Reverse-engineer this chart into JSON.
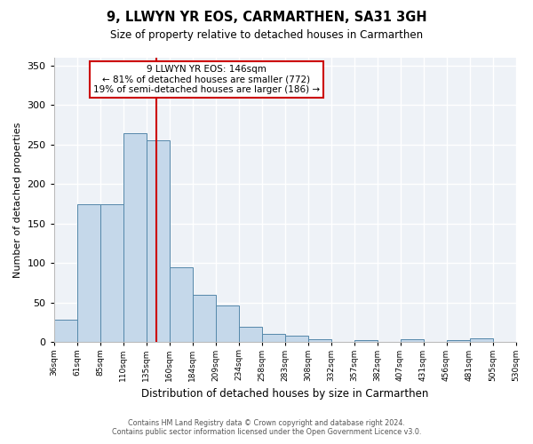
{
  "title": "9, LLWYN YR EOS, CARMARTHEN, SA31 3GH",
  "subtitle": "Size of property relative to detached houses in Carmarthen",
  "xlabel": "Distribution of detached houses by size in Carmarthen",
  "ylabel": "Number of detached properties",
  "bar_values": [
    28,
    175,
    175,
    264,
    255,
    95,
    60,
    47,
    20,
    11,
    8,
    4,
    0,
    3,
    0,
    4,
    0,
    3,
    5
  ],
  "bin_labels": [
    "36sqm",
    "61sqm",
    "85sqm",
    "110sqm",
    "135sqm",
    "160sqm",
    "184sqm",
    "209sqm",
    "234sqm",
    "258sqm",
    "283sqm",
    "308sqm",
    "332sqm",
    "357sqm",
    "382sqm",
    "407sqm",
    "431sqm",
    "456sqm",
    "481sqm",
    "505sqm",
    "530sqm"
  ],
  "bar_color": "#c5d8ea",
  "bar_edge_color": "#5588aa",
  "vline_bin_index": 4.44,
  "vline_color": "#cc0000",
  "ylim": [
    0,
    360
  ],
  "yticks": [
    0,
    50,
    100,
    150,
    200,
    250,
    300,
    350
  ],
  "annotation_title": "9 LLWYN YR EOS: 146sqm",
  "annotation_line1": "← 81% of detached houses are smaller (772)",
  "annotation_line2": "19% of semi-detached houses are larger (186) →",
  "annotation_box_color": "#cc0000",
  "footer_line1": "Contains HM Land Registry data © Crown copyright and database right 2024.",
  "footer_line2": "Contains public sector information licensed under the Open Government Licence v3.0.",
  "background_color": "#eef2f7"
}
